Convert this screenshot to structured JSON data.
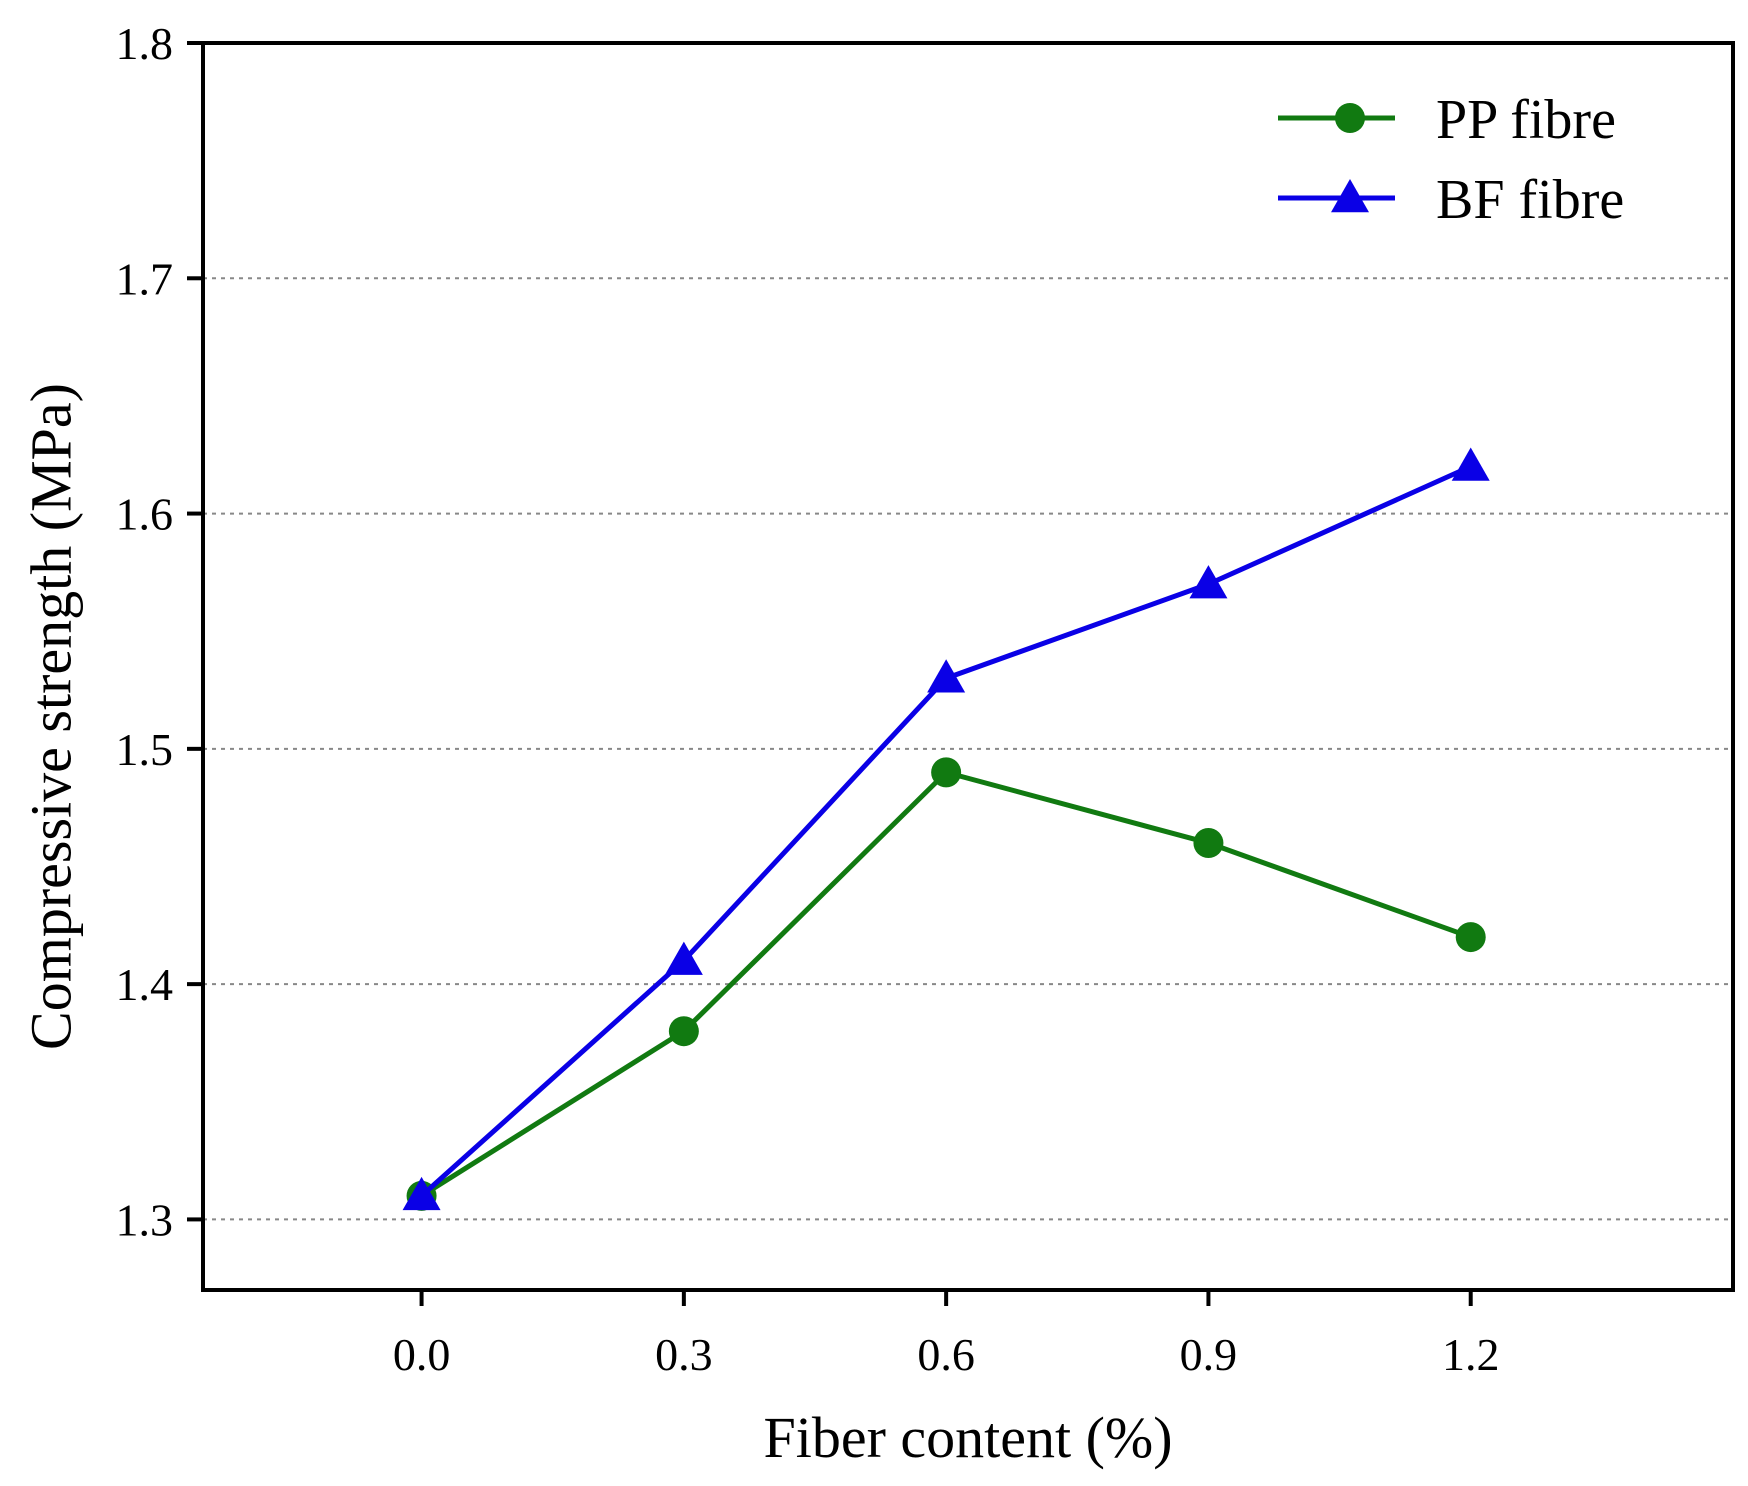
{
  "chart_data": {
    "type": "line",
    "title": "",
    "xlabel": "Fiber content (%)",
    "ylabel": "Compressive strength (MPa)",
    "x": [
      0.0,
      0.3,
      0.6,
      0.9,
      1.2
    ],
    "x_tick_labels": [
      "0.0",
      "0.3",
      "0.6",
      "0.9",
      "1.2"
    ],
    "xlim": [
      -0.25,
      1.5
    ],
    "ylim": [
      1.27,
      1.8
    ],
    "y_ticks": [
      1.3,
      1.4,
      1.5,
      1.6,
      1.7,
      1.8
    ],
    "y_tick_labels": [
      "1.3",
      "1.4",
      "1.5",
      "1.6",
      "1.7",
      "1.8"
    ],
    "grid": "horizontal dotted",
    "legend_position": "top-right",
    "series": [
      {
        "name": "PP fibre",
        "values": [
          1.31,
          1.38,
          1.49,
          1.46,
          1.42
        ],
        "color": "#117a11",
        "marker": "circle"
      },
      {
        "name": "BF fibre",
        "values": [
          1.31,
          1.41,
          1.53,
          1.57,
          1.62
        ],
        "color": "#0a00e6",
        "marker": "triangle"
      }
    ]
  }
}
